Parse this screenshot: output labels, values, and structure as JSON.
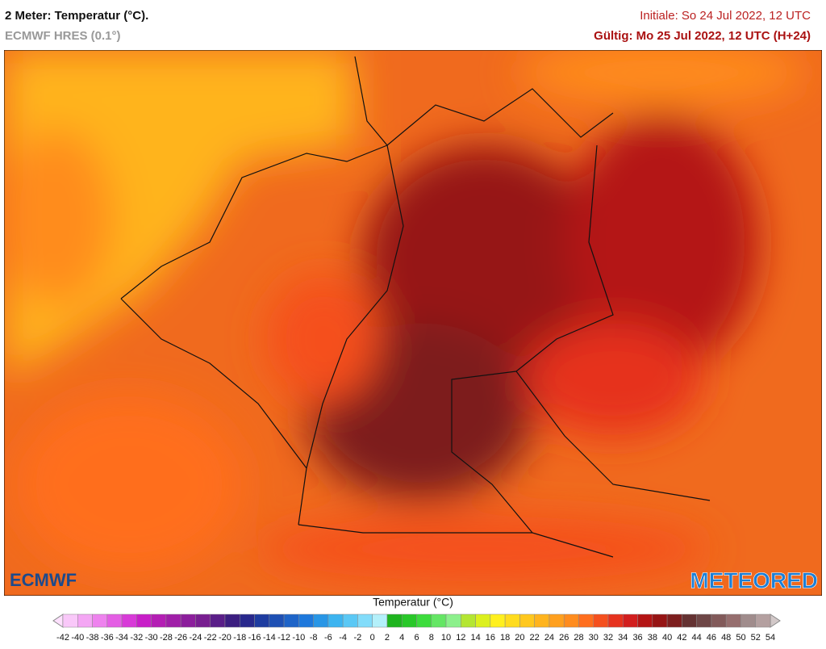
{
  "header": {
    "title": "2 Meter: Temperatur (°C).",
    "model": "ECMWF HRES (0.1°)",
    "init": "Initiale: So 24 Jul 2022, 12 UTC",
    "valid": "Gültig: Mo 25 Jul 2022, 12 UTC (H+24)"
  },
  "logos": {
    "left": "ECMWF",
    "right": "METEORED"
  },
  "colorbar": {
    "title": "Temperatur (°C)",
    "ticks": [
      -42,
      -40,
      -38,
      -36,
      -34,
      -32,
      -30,
      -28,
      -26,
      -24,
      -22,
      -20,
      -18,
      -16,
      -14,
      -12,
      -10,
      -8,
      -6,
      -4,
      -2,
      0,
      2,
      4,
      6,
      8,
      10,
      12,
      14,
      16,
      18,
      20,
      22,
      24,
      26,
      28,
      30,
      32,
      34,
      36,
      38,
      40,
      42,
      44,
      46,
      48,
      50,
      52,
      54
    ],
    "colors": [
      "#f9c8f9",
      "#f4a6f4",
      "#ee82ee",
      "#e45ee4",
      "#d83ad8",
      "#c81ec8",
      "#b41eb4",
      "#a01ea8",
      "#8c1e9c",
      "#781e90",
      "#5a1e88",
      "#3c1e80",
      "#28288c",
      "#1e3ca0",
      "#1e50b4",
      "#1e64c8",
      "#1e78dc",
      "#2896e6",
      "#3cb4f0",
      "#5ac8f5",
      "#82dcfa",
      "#b4f0fa",
      "#1eb41e",
      "#28c828",
      "#3cdc3c",
      "#64e664",
      "#8cf08c",
      "#b4e632",
      "#dcf01e",
      "#fff01e",
      "#ffdc1e",
      "#ffc81e",
      "#ffb41e",
      "#ffa01e",
      "#ff8c1e",
      "#ff6e1e",
      "#f5501e",
      "#e6321e",
      "#d21e1e",
      "#b41414",
      "#961414",
      "#7d1e1e",
      "#643232",
      "#6e4646",
      "#825a5a",
      "#966e6e",
      "#a08c8c",
      "#b4a0a0"
    ]
  }
}
